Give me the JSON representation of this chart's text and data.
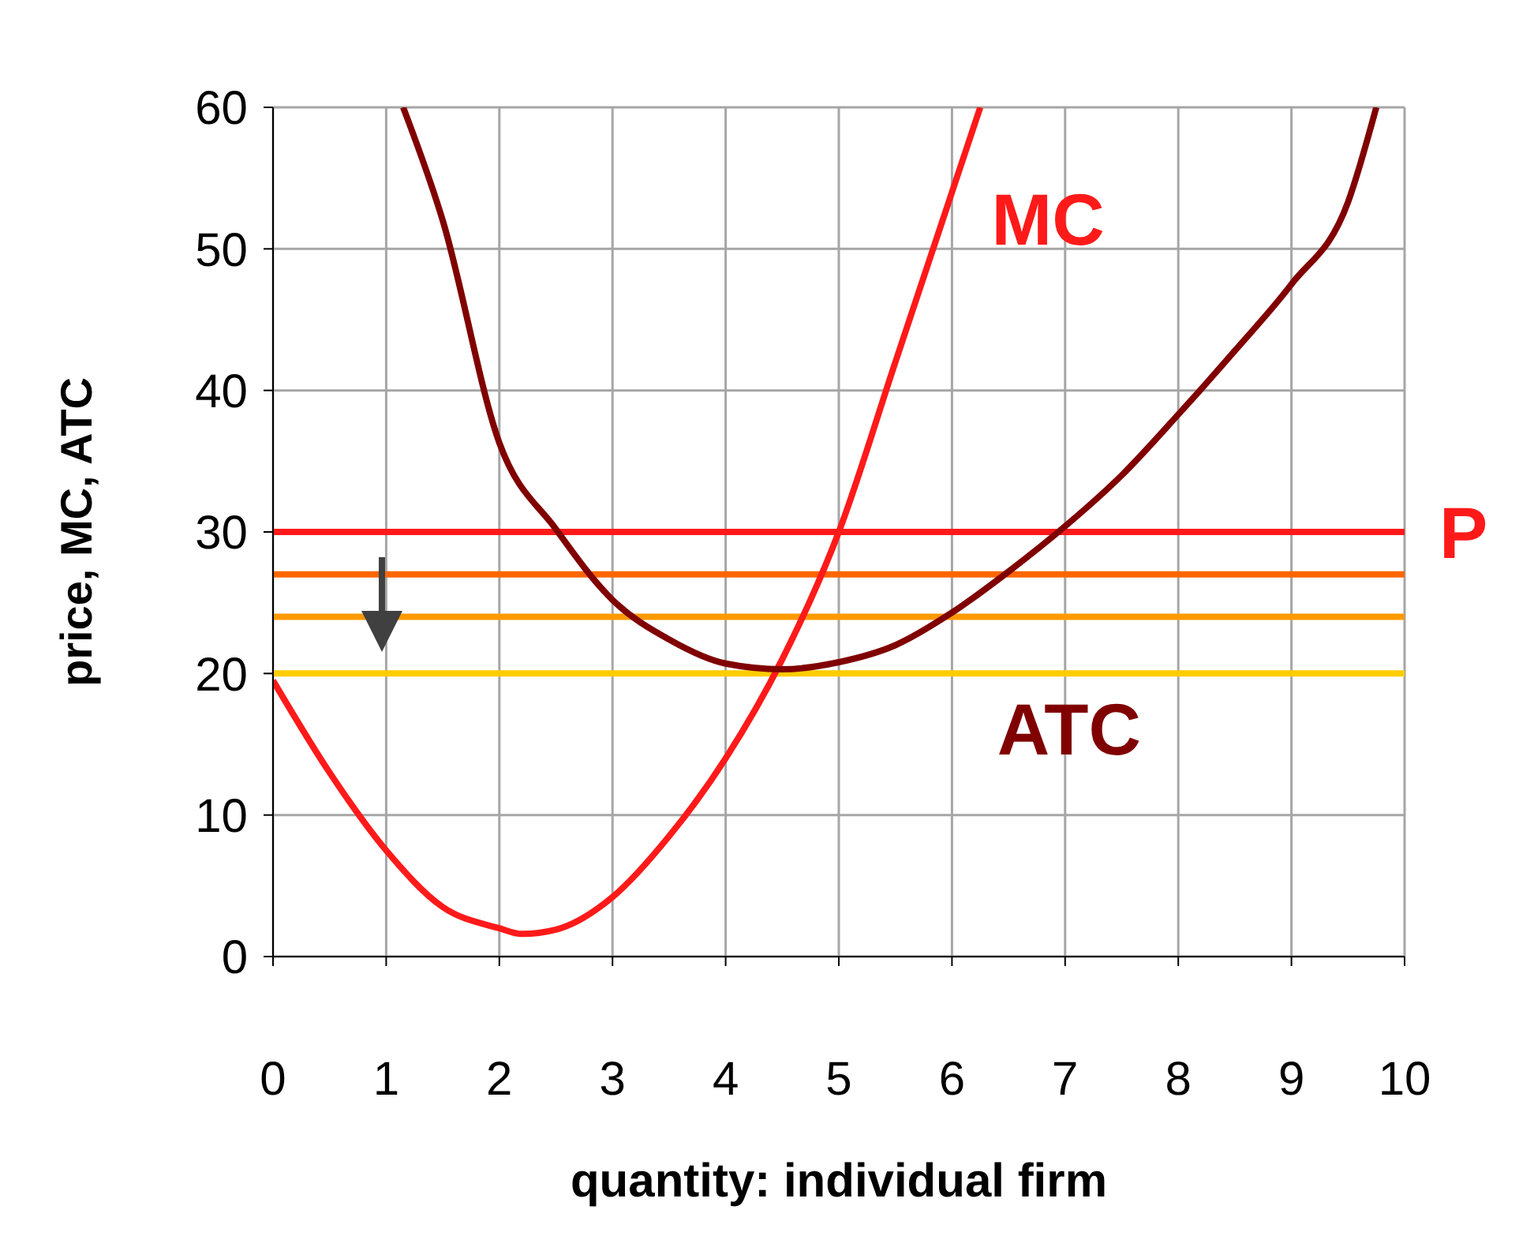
{
  "chart_data": {
    "type": "line",
    "xlabel": "quantity: individual firm",
    "ylabel": "price, MC, ATC",
    "xlim": [
      0,
      10
    ],
    "xticks": [
      0,
      1,
      2,
      3,
      4,
      5,
      6,
      7,
      8,
      9,
      10
    ],
    "ylim": [
      0,
      60
    ],
    "yticks": [
      0,
      10,
      20,
      30,
      40,
      50,
      60
    ],
    "grid": true,
    "marker": "none",
    "series": [
      {
        "name": "MC",
        "color": "#ff1a1a",
        "x": [
          0,
          0.5,
          1,
          1.5,
          2,
          2.2,
          2.5,
          3,
          3.5,
          4,
          4.5,
          5,
          5.5,
          6,
          6.25
        ],
        "values": [
          19.5,
          13,
          7.5,
          3.5,
          2,
          1.6,
          1.9,
          4.2,
          8.5,
          14,
          21,
          30,
          42,
          54,
          60
        ]
      },
      {
        "name": "ATC",
        "color": "#800000",
        "x": [
          1.15,
          1.5,
          2,
          2.5,
          3,
          3.5,
          4,
          4.5,
          5,
          5.5,
          6,
          6.5,
          7,
          7.5,
          8,
          8.5,
          9,
          9.5,
          9.75
        ],
        "values": [
          60,
          52,
          36.3,
          30.2,
          25.2,
          22.4,
          20.7,
          20.3,
          20.8,
          22,
          24.3,
          27.2,
          30.4,
          34,
          38.3,
          42.8,
          47.5,
          53.3,
          60
        ]
      }
    ],
    "ref_lines": [
      {
        "axis": "y",
        "value": 30,
        "label": "P",
        "color": "#ff1a1a"
      },
      {
        "axis": "y",
        "value": 27,
        "label": null,
        "color": "#ff6600"
      },
      {
        "axis": "y",
        "value": 24,
        "label": null,
        "color": "#ff9900"
      },
      {
        "axis": "y",
        "value": 20,
        "label": null,
        "color": "#ffcc00"
      }
    ]
  }
}
